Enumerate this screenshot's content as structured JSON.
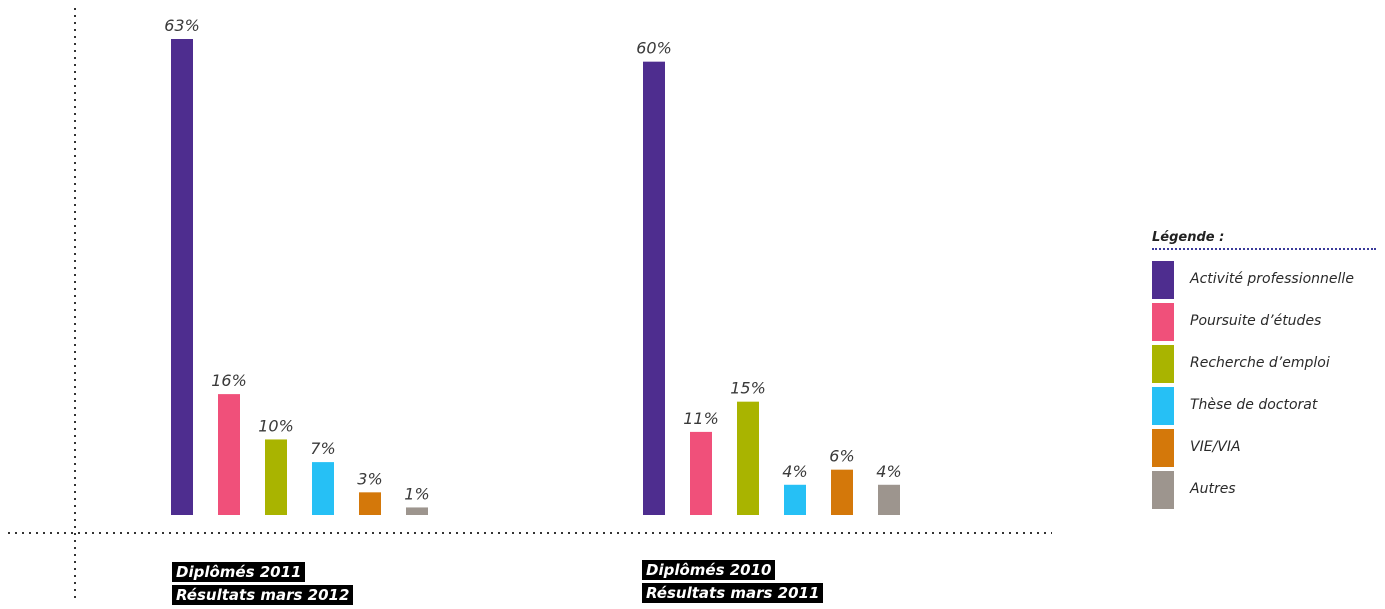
{
  "chart_data": {
    "type": "bar",
    "value_suffix": "%",
    "ylim": [
      0,
      63
    ],
    "grid": false,
    "legend_position": "right",
    "legend_title": "Légende :",
    "series": [
      {
        "name": "Activité professionnelle",
        "color": "#4e2d8f"
      },
      {
        "name": "Poursuite d’études",
        "color": "#f0507a"
      },
      {
        "name": "Recherche d’emploi",
        "color": "#a9b400"
      },
      {
        "name": "Thèse de doctorat",
        "color": "#26c0f5"
      },
      {
        "name": "VIE/VIA",
        "color": "#d4780a"
      },
      {
        "name": "Autres",
        "color": "#9d958e"
      }
    ],
    "groups": [
      {
        "caption_line1": "Diplômés 2011",
        "caption_line2": "Résultats mars 2012",
        "values": [
          63,
          16,
          10,
          7,
          3,
          1
        ],
        "labels": [
          "63%",
          "16%",
          "10%",
          "7%",
          "3%",
          "1%"
        ]
      },
      {
        "caption_line1": "Diplômés 2010",
        "caption_line2": "Résultats mars 2011",
        "values": [
          60,
          11,
          15,
          4,
          6,
          4
        ],
        "labels": [
          "60%",
          "11%",
          "15%",
          "4%",
          "6%",
          "4%"
        ]
      }
    ]
  }
}
